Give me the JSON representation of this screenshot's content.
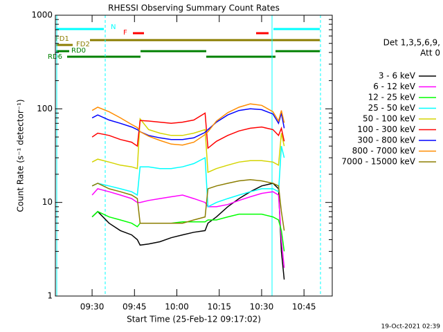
{
  "chart_data": {
    "type": "line",
    "title": "RHESSI Observing Summary Count Rates",
    "xlabel": "Start Time (25-Feb-12 09:17:02)",
    "ylabel": "Count Rate (s⁻¹ detector⁻¹)",
    "footer": "19-Oct-2021 02:39",
    "legend_header": [
      "Det 1,3,5,6,9,",
      "Att 0"
    ],
    "annotations": [
      "N",
      "F",
      "FD1",
      "FD2",
      "RD0",
      "RD6"
    ],
    "log_y": true,
    "xlim": [
      "09:17",
      "10:55"
    ],
    "xticks": [
      "09:30",
      "09:45",
      "10:00",
      "10:15",
      "10:30",
      "10:45"
    ],
    "ylim": [
      1,
      1000
    ],
    "yticks": [
      1,
      10,
      100,
      1000
    ],
    "x": [
      "09:30",
      "09:32",
      "09:36",
      "09:40",
      "09:44",
      "09:46",
      "09:47",
      "09:50",
      "09:54",
      "09:58",
      "10:02",
      "10:06",
      "10:10",
      "10:11",
      "10:14",
      "10:18",
      "10:22",
      "10:26",
      "10:30",
      "10:34",
      "10:36",
      "10:37",
      "10:38"
    ],
    "series": [
      {
        "name": "3 - 6 keV",
        "color": "#000000",
        "values": [
          7,
          8,
          6,
          5,
          4.5,
          4,
          3.5,
          3.6,
          3.8,
          4.2,
          4.5,
          4.8,
          5,
          6,
          7,
          9,
          11,
          13,
          15,
          16,
          14,
          3,
          1.5
        ]
      },
      {
        "name": "6 - 12 keV",
        "color": "#ff00ff",
        "values": [
          12,
          14,
          13,
          12,
          11,
          10,
          10,
          10.5,
          11,
          11.5,
          12,
          11,
          10,
          9,
          9,
          9.5,
          10.5,
          11.5,
          12.5,
          13,
          12,
          4,
          2
        ]
      },
      {
        "name": "12 - 25 keV",
        "color": "#00ff00",
        "values": [
          7,
          8,
          7,
          6.5,
          6,
          5.5,
          6,
          6,
          6,
          6,
          6.2,
          6.2,
          6.2,
          6.5,
          6.5,
          7,
          7.5,
          7.5,
          7.5,
          7,
          6.5,
          5,
          3
        ]
      },
      {
        "name": "25 - 50 keV",
        "color": "#00ffff",
        "values": [
          15,
          16,
          15,
          14,
          13,
          12,
          24,
          24,
          23,
          23,
          24,
          26,
          30,
          9,
          10,
          11,
          12,
          13,
          14,
          14,
          13,
          40,
          30
        ]
      },
      {
        "name": "50 - 100 keV",
        "color": "#d4d400",
        "values": [
          27,
          29,
          27,
          25,
          24,
          23,
          78,
          60,
          55,
          52,
          52,
          55,
          60,
          21,
          23,
          25,
          27,
          28,
          28,
          27,
          25,
          55,
          40
        ]
      },
      {
        "name": "100 - 300 keV",
        "color": "#ff0000",
        "values": [
          50,
          55,
          52,
          47,
          44,
          40,
          75,
          74,
          72,
          70,
          72,
          76,
          90,
          38,
          45,
          52,
          58,
          62,
          64,
          60,
          52,
          62,
          45
        ]
      },
      {
        "name": "300 - 800 keV",
        "color": "#0000ff",
        "values": [
          80,
          86,
          76,
          70,
          64,
          60,
          57,
          52,
          49,
          47,
          47,
          49,
          56,
          60,
          72,
          86,
          96,
          100,
          98,
          88,
          70,
          90,
          62
        ]
      },
      {
        "name": "800 - 7000 keV",
        "color": "#ff8c00",
        "values": [
          96,
          104,
          93,
          80,
          68,
          63,
          57,
          51,
          46,
          42,
          41,
          44,
          53,
          57,
          74,
          91,
          104,
          113,
          109,
          93,
          74,
          96,
          71
        ]
      },
      {
        "name": "7000 - 15000 keV",
        "color": "#8b7d00",
        "values": [
          15,
          16,
          14,
          13,
          12,
          11,
          6,
          6,
          6,
          6,
          6,
          6.5,
          7,
          14,
          15,
          16,
          17,
          17.5,
          17,
          16,
          15,
          8,
          5
        ]
      }
    ]
  }
}
